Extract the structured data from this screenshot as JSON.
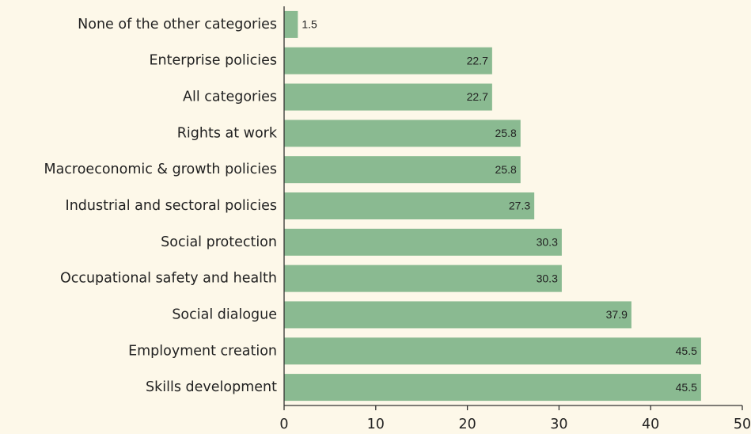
{
  "chart_data": {
    "type": "bar",
    "orientation": "horizontal",
    "categories": [
      "None of the other categories",
      "Enterprise policies",
      "All categories",
      "Rights at work",
      "Macroeconomic & growth policies",
      "Industrial and sectoral policies",
      "Social protection",
      "Occupational safety and health",
      "Social dialogue",
      "Employment creation",
      "Skills development"
    ],
    "values": [
      1.5,
      22.7,
      22.7,
      25.8,
      25.8,
      27.3,
      30.3,
      30.3,
      37.9,
      45.5,
      45.5
    ],
    "color": "#8aba91",
    "xlim": [
      0,
      50
    ],
    "xticks": [
      0,
      10,
      20,
      30,
      40,
      50
    ],
    "grid": false
  }
}
